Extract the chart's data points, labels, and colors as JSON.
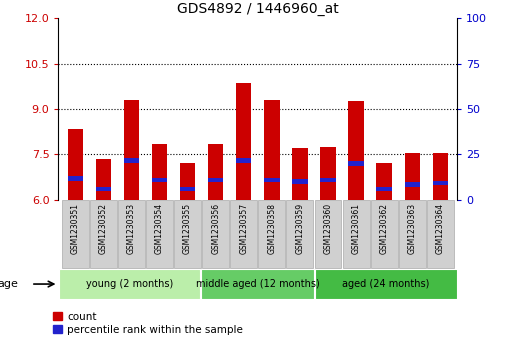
{
  "title": "GDS4892 / 1446960_at",
  "samples": [
    "GSM1230351",
    "GSM1230352",
    "GSM1230353",
    "GSM1230354",
    "GSM1230355",
    "GSM1230356",
    "GSM1230357",
    "GSM1230358",
    "GSM1230359",
    "GSM1230360",
    "GSM1230361",
    "GSM1230362",
    "GSM1230363",
    "GSM1230364"
  ],
  "count_values": [
    8.35,
    7.35,
    9.3,
    7.85,
    7.2,
    7.85,
    9.85,
    9.3,
    7.7,
    7.75,
    9.25,
    7.2,
    7.55,
    7.55
  ],
  "percentile_values": [
    6.7,
    6.35,
    7.3,
    6.65,
    6.35,
    6.65,
    7.3,
    6.65,
    6.6,
    6.65,
    7.2,
    6.35,
    6.5,
    6.55
  ],
  "ymin": 6.0,
  "ymax": 12.0,
  "yticks_left": [
    6,
    7.5,
    9,
    10.5,
    12
  ],
  "yticks_right": [
    0,
    25,
    50,
    75,
    100
  ],
  "y2min": 0,
  "y2max": 100,
  "bar_color": "#CC0000",
  "blue_color": "#2222CC",
  "bar_width": 0.55,
  "group_defs": [
    {
      "start": 0,
      "end": 5,
      "label": "young (2 months)",
      "color": "#BBEEAA"
    },
    {
      "start": 5,
      "end": 9,
      "label": "middle aged (12 months)",
      "color": "#66CC66"
    },
    {
      "start": 9,
      "end": 14,
      "label": "aged (24 months)",
      "color": "#44BB44"
    }
  ],
  "age_label": "age",
  "legend_count": "count",
  "legend_percentile": "percentile rank within the sample",
  "tick_color_left": "#CC0000",
  "tick_color_right": "#0000CC",
  "label_box_color": "#D0D0D0",
  "label_box_edge": "#AAAAAA"
}
